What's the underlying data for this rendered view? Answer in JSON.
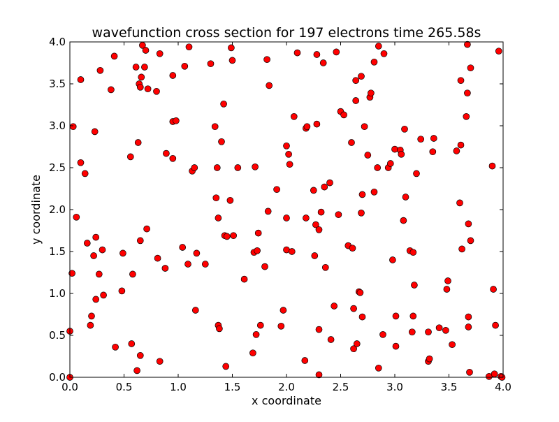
{
  "chart_data": {
    "type": "scatter",
    "title": "wavefunction cross section for 197 electrons time 265.58s",
    "xlabel": "x coordinate",
    "ylabel": "y coordinate",
    "xlim": [
      0.0,
      4.0
    ],
    "ylim": [
      0.0,
      4.0
    ],
    "xticks": [
      "0.0",
      "0.5",
      "1.0",
      "1.5",
      "2.0",
      "2.5",
      "3.0",
      "3.5",
      "4.0"
    ],
    "yticks": [
      "0.0",
      "0.5",
      "1.0",
      "1.5",
      "2.0",
      "2.5",
      "3.0",
      "3.5",
      "4.0"
    ],
    "grid": false,
    "marker_color": "#ff0000",
    "marker_edge_color": "#000000",
    "series": [
      {
        "points": [
          [
            0.03,
            2.99
          ],
          [
            0.02,
            1.24
          ],
          [
            0.0,
            0.55
          ],
          [
            0.06,
            1.91
          ],
          [
            0.1,
            3.55
          ],
          [
            0.1,
            2.56
          ],
          [
            0.14,
            2.43
          ],
          [
            0.16,
            1.6
          ],
          [
            0.19,
            0.62
          ],
          [
            0.2,
            0.73
          ],
          [
            0.22,
            1.45
          ],
          [
            0.23,
            2.93
          ],
          [
            0.24,
            1.67
          ],
          [
            0.24,
            0.93
          ],
          [
            0.27,
            1.23
          ],
          [
            0.28,
            3.66
          ],
          [
            0.3,
            1.52
          ],
          [
            0.31,
            0.98
          ],
          [
            0.38,
            3.43
          ],
          [
            0.41,
            3.83
          ],
          [
            0.42,
            0.36
          ],
          [
            0.48,
            1.03
          ],
          [
            0.49,
            1.48
          ],
          [
            0.56,
            2.63
          ],
          [
            0.57,
            0.4
          ],
          [
            0.58,
            1.23
          ],
          [
            0.61,
            3.7
          ],
          [
            0.62,
            0.08
          ],
          [
            0.63,
            2.8
          ],
          [
            0.64,
            3.5
          ],
          [
            0.65,
            3.46
          ],
          [
            0.65,
            1.63
          ],
          [
            0.65,
            0.26
          ],
          [
            0.66,
            3.58
          ],
          [
            0.67,
            3.96
          ],
          [
            0.69,
            3.7
          ],
          [
            0.7,
            3.9
          ],
          [
            0.71,
            1.77
          ],
          [
            0.72,
            3.44
          ],
          [
            0.8,
            3.41
          ],
          [
            0.81,
            1.42
          ],
          [
            0.83,
            3.86
          ],
          [
            0.83,
            0.19
          ],
          [
            0.88,
            1.3
          ],
          [
            0.89,
            2.67
          ],
          [
            0.95,
            3.6
          ],
          [
            0.95,
            2.61
          ],
          [
            0.95,
            3.05
          ],
          [
            0.98,
            3.06
          ],
          [
            1.04,
            1.55
          ],
          [
            1.06,
            3.71
          ],
          [
            1.09,
            1.35
          ],
          [
            1.1,
            3.94
          ],
          [
            1.13,
            2.46
          ],
          [
            1.15,
            2.5
          ],
          [
            1.16,
            0.8
          ],
          [
            1.17,
            1.48
          ],
          [
            1.25,
            1.35
          ],
          [
            1.3,
            3.74
          ],
          [
            1.34,
            2.99
          ],
          [
            1.35,
            2.14
          ],
          [
            1.36,
            2.5
          ],
          [
            1.37,
            1.9
          ],
          [
            1.37,
            0.62
          ],
          [
            1.38,
            0.58
          ],
          [
            1.4,
            2.81
          ],
          [
            1.42,
            3.26
          ],
          [
            1.43,
            1.69
          ],
          [
            1.44,
            0.13
          ],
          [
            1.45,
            1.68
          ],
          [
            1.48,
            2.11
          ],
          [
            1.49,
            3.93
          ],
          [
            1.5,
            3.78
          ],
          [
            1.51,
            1.69
          ],
          [
            1.55,
            2.5
          ],
          [
            1.61,
            1.17
          ],
          [
            1.69,
            0.29
          ],
          [
            1.7,
            1.49
          ],
          [
            1.71,
            2.51
          ],
          [
            1.72,
            0.51
          ],
          [
            1.73,
            1.51
          ],
          [
            1.74,
            1.72
          ],
          [
            1.76,
            0.62
          ],
          [
            1.8,
            1.32
          ],
          [
            1.82,
            3.79
          ],
          [
            1.83,
            1.98
          ],
          [
            1.84,
            3.48
          ],
          [
            1.91,
            2.24
          ],
          [
            1.95,
            0.61
          ],
          [
            1.97,
            0.8
          ],
          [
            2.0,
            1.52
          ],
          [
            2.0,
            2.76
          ],
          [
            2.0,
            1.9
          ],
          [
            2.02,
            2.66
          ],
          [
            2.03,
            2.54
          ],
          [
            2.05,
            1.5
          ],
          [
            2.07,
            3.11
          ],
          [
            2.1,
            3.87
          ],
          [
            2.17,
            0.2
          ],
          [
            2.18,
            2.97
          ],
          [
            2.18,
            1.9
          ],
          [
            2.19,
            2.99
          ],
          [
            2.25,
            2.23
          ],
          [
            2.26,
            1.45
          ],
          [
            2.27,
            1.82
          ],
          [
            2.28,
            3.02
          ],
          [
            2.28,
            3.85
          ],
          [
            2.3,
            1.76
          ],
          [
            2.3,
            0.57
          ],
          [
            2.3,
            0.03
          ],
          [
            2.32,
            1.97
          ],
          [
            2.34,
            3.75
          ],
          [
            2.35,
            2.27
          ],
          [
            2.36,
            1.31
          ],
          [
            2.4,
            2.32
          ],
          [
            2.41,
            0.45
          ],
          [
            2.44,
            0.85
          ],
          [
            2.46,
            3.88
          ],
          [
            2.48,
            1.94
          ],
          [
            2.5,
            3.17
          ],
          [
            2.53,
            3.13
          ],
          [
            2.57,
            1.57
          ],
          [
            2.6,
            2.8
          ],
          [
            2.61,
            1.54
          ],
          [
            2.62,
            0.82
          ],
          [
            2.62,
            0.34
          ],
          [
            2.64,
            3.3
          ],
          [
            2.64,
            3.54
          ],
          [
            2.65,
            0.4
          ],
          [
            2.67,
            1.02
          ],
          [
            2.68,
            1.01
          ],
          [
            2.69,
            3.59
          ],
          [
            2.69,
            1.96
          ],
          [
            2.7,
            2.18
          ],
          [
            2.7,
            0.72
          ],
          [
            2.72,
            2.99
          ],
          [
            2.75,
            2.65
          ],
          [
            2.77,
            3.34
          ],
          [
            2.78,
            3.39
          ],
          [
            2.81,
            3.76
          ],
          [
            2.81,
            2.21
          ],
          [
            2.84,
            2.5
          ],
          [
            2.85,
            0.11
          ],
          [
            2.85,
            3.95
          ],
          [
            2.89,
            0.51
          ],
          [
            2.9,
            3.86
          ],
          [
            2.94,
            2.5
          ],
          [
            2.96,
            2.55
          ],
          [
            2.98,
            1.4
          ],
          [
            3.0,
            2.72
          ],
          [
            3.01,
            0.73
          ],
          [
            3.01,
            0.37
          ],
          [
            3.05,
            2.71
          ],
          [
            3.06,
            2.66
          ],
          [
            3.08,
            1.87
          ],
          [
            3.09,
            2.96
          ],
          [
            3.1,
            2.15
          ],
          [
            3.14,
            1.51
          ],
          [
            3.16,
            0.54
          ],
          [
            3.17,
            1.49
          ],
          [
            3.17,
            0.73
          ],
          [
            3.18,
            1.1
          ],
          [
            3.2,
            2.43
          ],
          [
            3.24,
            2.84
          ],
          [
            3.31,
            0.54
          ],
          [
            3.31,
            0.19
          ],
          [
            3.32,
            0.22
          ],
          [
            3.35,
            2.69
          ],
          [
            3.36,
            2.85
          ],
          [
            3.41,
            0.59
          ],
          [
            3.47,
            0.56
          ],
          [
            3.48,
            1.05
          ],
          [
            3.49,
            1.15
          ],
          [
            3.53,
            0.39
          ],
          [
            3.57,
            2.7
          ],
          [
            3.6,
            2.08
          ],
          [
            3.61,
            2.77
          ],
          [
            3.61,
            3.54
          ],
          [
            3.62,
            1.53
          ],
          [
            3.66,
            3.11
          ],
          [
            3.67,
            3.39
          ],
          [
            3.67,
            3.97
          ],
          [
            3.68,
            1.83
          ],
          [
            3.68,
            0.6
          ],
          [
            3.68,
            0.72
          ],
          [
            3.69,
            0.06
          ],
          [
            3.7,
            3.69
          ],
          [
            3.7,
            1.63
          ],
          [
            3.87,
            0.01
          ],
          [
            3.9,
            2.52
          ],
          [
            3.91,
            1.05
          ],
          [
            3.92,
            0.04
          ],
          [
            3.93,
            0.62
          ],
          [
            3.96,
            3.89
          ],
          [
            3.98,
            0.01
          ],
          [
            3.99,
            0.0
          ],
          [
            0.0,
            0.0
          ]
        ]
      }
    ]
  }
}
